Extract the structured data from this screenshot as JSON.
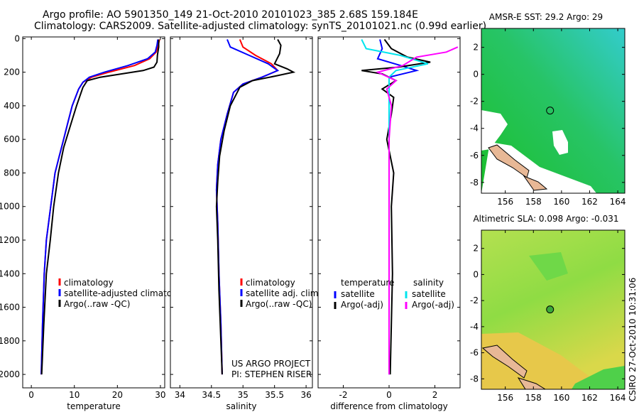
{
  "header": {
    "line1": "Argo profile: AO 5901350_149 21-Oct-2010 20101023_385 2.68S 159.184E",
    "line2": "Climatology: CARS2009. Satellite-adjusted climatology: synTS_20101021.nc (0.99d earlier)"
  },
  "stamp": "CSIRO 27-Oct-2010 10:31:06",
  "colors": {
    "climatology": "#ff0000",
    "satellite": "#0000ff",
    "argo": "#000000",
    "sal_satellite": "#00e5ee",
    "sal_argo": "#ff00ff",
    "map_green": "#22cc22",
    "map_cyan": "#33cccc",
    "land": "#e8b896",
    "sla_yellow": "#e5d84a",
    "sla_green": "#7fdd44"
  },
  "chart_data": [
    {
      "type": "line",
      "xlabel": "temperature",
      "xticks": [
        0,
        10,
        20,
        30
      ],
      "yticks": [
        0,
        200,
        400,
        600,
        800,
        1000,
        1200,
        1400,
        1600,
        1800,
        2000
      ],
      "xlim": [
        -2,
        31
      ],
      "ylim": [
        2080,
        -10
      ],
      "legend": [
        "climatology",
        "satellite-adjusted climatology",
        "Argo(..raw -QC)"
      ],
      "series": [
        {
          "name": "climatology",
          "color": "#ff0000",
          "x": [
            29.8,
            29.5,
            29,
            27.5,
            24,
            18,
            14,
            12,
            11,
            9.5,
            8.5,
            7.5,
            6.5,
            5.5,
            4.5,
            3.5,
            3,
            2.6,
            2.3
          ],
          "y": [
            5,
            40,
            80,
            120,
            160,
            200,
            230,
            260,
            300,
            400,
            500,
            600,
            700,
            800,
            1000,
            1200,
            1400,
            1700,
            2000
          ]
        },
        {
          "name": "satellite-adjusted climatology",
          "color": "#0000ff",
          "x": [
            29.4,
            29.2,
            28.8,
            27,
            22.5,
            17,
            13.5,
            12,
            11,
            9.5,
            8.5,
            7.5,
            6.5,
            5.5,
            4.5,
            3.5,
            3,
            2.6,
            2.3
          ],
          "y": [
            5,
            40,
            80,
            120,
            160,
            200,
            230,
            260,
            300,
            400,
            500,
            600,
            700,
            800,
            1000,
            1200,
            1400,
            1700,
            2000
          ]
        },
        {
          "name": "Argo(..raw -QC)",
          "color": "#000000",
          "x": [
            29.6,
            29.6,
            29.3,
            29.2,
            28.5,
            26,
            21,
            16,
            13,
            12,
            10.5,
            9.3,
            7.5,
            6.3,
            5.2,
            4.4,
            3.5,
            2.9,
            2.4
          ],
          "y": [
            5,
            50,
            100,
            140,
            170,
            190,
            210,
            230,
            250,
            290,
            400,
            500,
            650,
            800,
            1000,
            1200,
            1400,
            1700,
            2000
          ]
        }
      ]
    },
    {
      "type": "line",
      "xlabel": "salinity",
      "xticks": [
        34,
        34.5,
        35,
        35.5,
        36
      ],
      "yticks": [
        0,
        200,
        400,
        600,
        800,
        1000,
        1200,
        1400,
        1600,
        1800,
        2000
      ],
      "xlim": [
        33.85,
        36.1
      ],
      "ylim": [
        2080,
        -10
      ],
      "legend": [
        "climatology",
        "satellite adj. clim.",
        "Argo(..raw -QC)"
      ],
      "annotation": [
        "US ARGO PROJECT",
        "PI: STEPHEN RISER"
      ],
      "series": [
        {
          "name": "climatology",
          "color": "#ff0000",
          "x": [
            34.95,
            35,
            35.2,
            35.45,
            35.55,
            35.3,
            35,
            34.85,
            34.75,
            34.65,
            34.6,
            34.58,
            34.6,
            34.62,
            34.65,
            34.67
          ],
          "y": [
            5,
            50,
            100,
            150,
            190,
            230,
            270,
            320,
            450,
            600,
            750,
            900,
            1100,
            1400,
            1700,
            2000
          ]
        },
        {
          "name": "satellite adj. clim.",
          "color": "#0000ff",
          "x": [
            34.75,
            34.8,
            35.1,
            35.4,
            35.55,
            35.3,
            35,
            34.85,
            34.75,
            34.65,
            34.6,
            34.58,
            34.6,
            34.62,
            34.65,
            34.67
          ],
          "y": [
            5,
            50,
            100,
            150,
            190,
            230,
            270,
            320,
            450,
            600,
            750,
            900,
            1100,
            1400,
            1700,
            2000
          ]
        },
        {
          "name": "Argo(..raw -QC)",
          "color": "#000000",
          "x": [
            35.55,
            35.6,
            35.58,
            35.5,
            35.7,
            35.8,
            35.55,
            35.15,
            34.95,
            34.8,
            34.7,
            34.63,
            34.6,
            34.58,
            34.6,
            34.62,
            34.65,
            34.67
          ],
          "y": [
            5,
            40,
            90,
            150,
            180,
            200,
            220,
            250,
            290,
            400,
            550,
            700,
            850,
            1000,
            1200,
            1500,
            1800,
            2000
          ]
        }
      ]
    },
    {
      "type": "line",
      "xlabel": "difference from climatology",
      "xticks": [
        -2,
        0,
        2
      ],
      "yticks": [
        0,
        200,
        400,
        600,
        800,
        1000,
        1200,
        1400,
        1600,
        1800,
        2000
      ],
      "xlim": [
        -3.1,
        3.1
      ],
      "ylim": [
        2080,
        -10
      ],
      "legend_left_title": "temperature",
      "legend_right_title": "salinity",
      "legend_left": [
        "satellite",
        "Argo(-adj)"
      ],
      "legend_right": [
        "satellite",
        "Argo(-adj)"
      ],
      "series": [
        {
          "name": "temperature satellite",
          "color": "#0000ff",
          "x": [
            -0.4,
            -0.3,
            -0.5,
            0.5,
            1.2,
            0,
            0,
            0,
            0,
            0
          ],
          "y": [
            5,
            60,
            120,
            160,
            190,
            230,
            300,
            600,
            1200,
            2000
          ]
        },
        {
          "name": "temperature Argo(-adj)",
          "color": "#000000",
          "x": [
            -0.2,
            0.1,
            0.8,
            1.8,
            0.4,
            -1.2,
            -0.3,
            0.3,
            -0.3,
            0.2,
            0.1,
            -0.1,
            0.2,
            0.1,
            0.15,
            0.05
          ],
          "y": [
            5,
            60,
            110,
            140,
            170,
            190,
            210,
            250,
            300,
            350,
            450,
            600,
            800,
            1000,
            1400,
            2000
          ]
        },
        {
          "name": "salinity satellite",
          "color": "#00e5ee",
          "x": [
            -1.2,
            -1.0,
            0.5,
            1.7,
            0.3,
            0,
            0,
            0,
            0
          ],
          "y": [
            5,
            60,
            100,
            150,
            190,
            230,
            400,
            1000,
            2000
          ]
        },
        {
          "name": "salinity Argo(-adj)",
          "color": "#ff00ff",
          "x": [
            3.0,
            2.5,
            1.2,
            0.6,
            -0.5,
            0.3,
            -0.1,
            0.1,
            0,
            0,
            0
          ],
          "y": [
            50,
            80,
            110,
            160,
            200,
            250,
            300,
            400,
            600,
            1200,
            2000
          ]
        }
      ]
    }
  ],
  "maps": [
    {
      "title": "AMSR-E SST: 29.2 Argo: 29",
      "xticks": [
        156,
        158,
        160,
        162,
        164
      ],
      "yticks": [
        2,
        0,
        -2,
        -4,
        -6,
        -8
      ],
      "xlim": [
        154.3,
        164.5
      ],
      "ylim": [
        -8.8,
        3.4
      ]
    },
    {
      "title": "Altimetric SLA: 0.098 Argo: -0.031",
      "xticks": [
        156,
        158,
        160,
        162,
        164
      ],
      "yticks": [
        2,
        0,
        -2,
        -4,
        -6,
        -8
      ],
      "xlim": [
        154.3,
        164.5
      ],
      "ylim": [
        -8.8,
        3.4
      ]
    }
  ]
}
